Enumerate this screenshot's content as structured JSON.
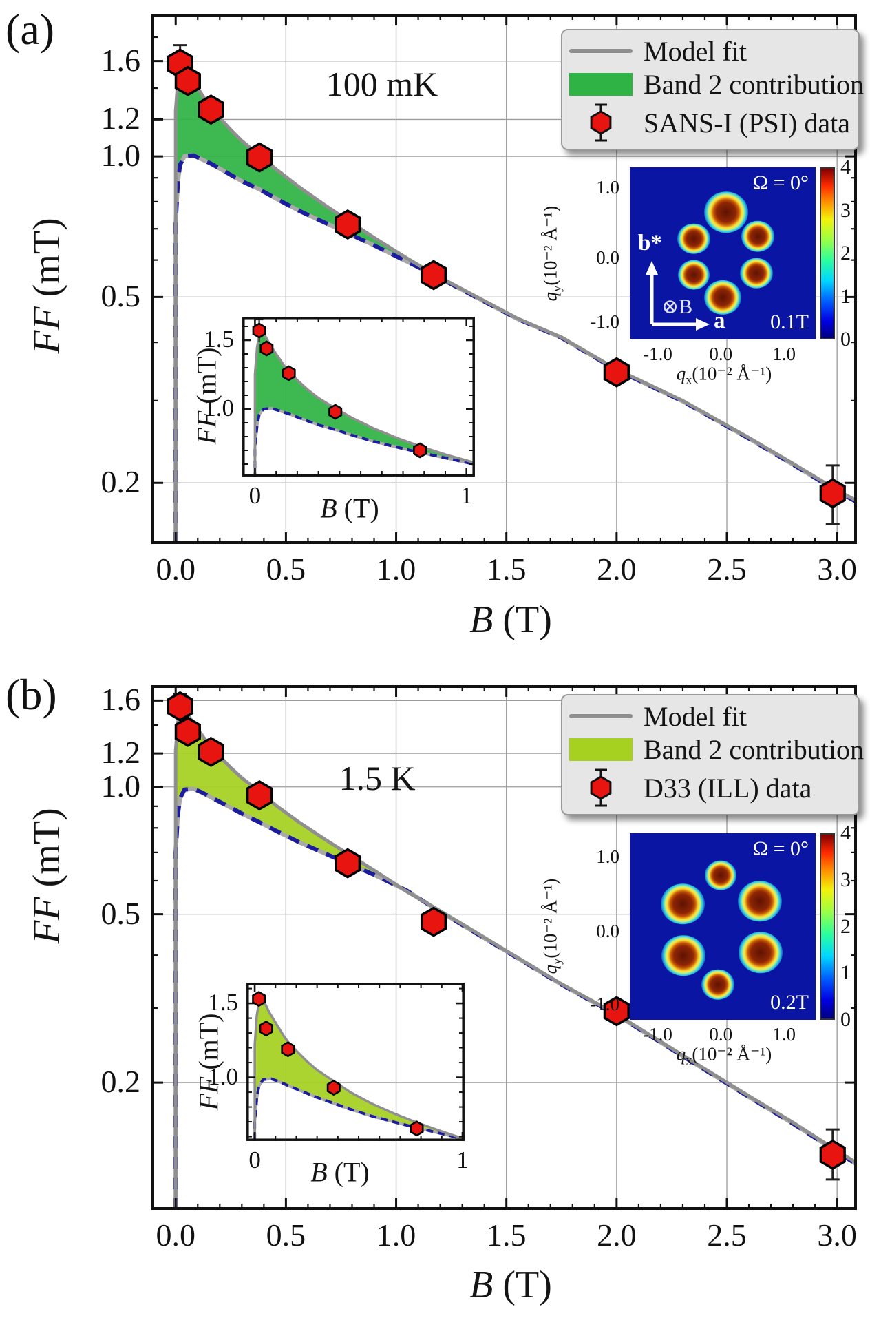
{
  "chart_data": [
    {
      "type": "line+scatter",
      "panel_label": "(a)",
      "title": "100 mK",
      "legend": {
        "model": "Model fit",
        "band2": "Band 2 contribution",
        "data": "SANS-I (PSI) data"
      },
      "colors": {
        "band2": "#2fb344",
        "band1": "#1c1c9e",
        "model": "#8f8f8f",
        "marker": "#e81410"
      },
      "axes": {
        "x": {
          "min": -0.11,
          "max": 3.09,
          "majors": [
            0,
            0.5,
            1,
            1.5,
            2,
            2.5,
            3
          ],
          "labels": [
            "0.0",
            "0.5",
            "1.0",
            "1.5",
            "2.0",
            "2.5",
            "3.0"
          ],
          "grid": [
            0.5,
            1,
            1.5,
            2,
            2.5,
            3
          ],
          "label_sym": "B",
          "label_unit": "(T)"
        },
        "y": {
          "scale": "log",
          "min": 0.148,
          "max": 2.02,
          "labeled": [
            1.6,
            1.2,
            1.0,
            0.5,
            0.2
          ],
          "labels": [
            "1.6",
            "1.2",
            "1.0",
            "0.5",
            "0.2"
          ],
          "label_sym": "FF",
          "label_unit": "(mT)"
        }
      },
      "series": {
        "model_fit_upper": [
          [
            0.0,
            0.148
          ],
          [
            0.0,
            1.25
          ],
          [
            0.01,
            1.45
          ],
          [
            0.025,
            1.57
          ],
          [
            0.04,
            1.555
          ],
          [
            0.07,
            1.47
          ],
          [
            0.1,
            1.4
          ],
          [
            0.14,
            1.31
          ],
          [
            0.16,
            1.27
          ],
          [
            0.2,
            1.21
          ],
          [
            0.25,
            1.14
          ],
          [
            0.3,
            1.08
          ],
          [
            0.38,
            1.005
          ],
          [
            0.46,
            0.935
          ],
          [
            0.56,
            0.86
          ],
          [
            0.68,
            0.785
          ],
          [
            0.78,
            0.73
          ],
          [
            0.9,
            0.67
          ],
          [
            1.05,
            0.605
          ],
          [
            1.17,
            0.56
          ],
          [
            1.35,
            0.505
          ],
          [
            1.55,
            0.45
          ],
          [
            1.75,
            0.41
          ],
          [
            2.0,
            0.35
          ],
          [
            2.3,
            0.3
          ],
          [
            2.6,
            0.25
          ],
          [
            2.8,
            0.22
          ],
          [
            3.0,
            0.193
          ],
          [
            3.09,
            0.183
          ]
        ],
        "band1_lower": [
          [
            0.0,
            0.148
          ],
          [
            0.0,
            0.72
          ],
          [
            0.01,
            0.88
          ],
          [
            0.02,
            0.96
          ],
          [
            0.04,
            1.0
          ],
          [
            0.08,
            1.005
          ],
          [
            0.12,
            0.985
          ],
          [
            0.16,
            0.965
          ],
          [
            0.22,
            0.93
          ],
          [
            0.3,
            0.885
          ],
          [
            0.38,
            0.85
          ],
          [
            0.46,
            0.81
          ],
          [
            0.56,
            0.765
          ],
          [
            0.68,
            0.72
          ],
          [
            0.78,
            0.685
          ],
          [
            0.9,
            0.645
          ],
          [
            1.05,
            0.595
          ],
          [
            1.17,
            0.558
          ],
          [
            1.35,
            0.503
          ],
          [
            1.55,
            0.449
          ],
          [
            1.75,
            0.409
          ],
          [
            2.0,
            0.349
          ],
          [
            2.3,
            0.299
          ],
          [
            2.6,
            0.249
          ],
          [
            2.8,
            0.219
          ],
          [
            3.0,
            0.192
          ],
          [
            3.09,
            0.182
          ]
        ],
        "data_points": [
          [
            0.02,
            1.58
          ],
          [
            0.055,
            1.45
          ],
          [
            0.16,
            1.26
          ],
          [
            0.38,
            0.995
          ],
          [
            0.78,
            0.715
          ],
          [
            1.17,
            0.557
          ],
          [
            2.0,
            0.345
          ],
          [
            2.98,
            0.19
          ]
        ],
        "errors": [
          {
            "i": 0,
            "lo": 1.5,
            "hi": 1.73
          },
          {
            "i": 7,
            "lo": 0.163,
            "hi": 0.218
          }
        ]
      },
      "inset": {
        "x": {
          "min": -0.06,
          "max": 1.04,
          "majors": [
            0,
            1
          ],
          "labels": [
            "0",
            "1"
          ],
          "label_sym": "B",
          "label_unit": "(T)"
        },
        "y": {
          "min": 0.51,
          "max": 1.67,
          "labeled": [
            1.5,
            1.0
          ],
          "labels": [
            "1.5",
            "1.0"
          ],
          "label_sym": "FF",
          "label_unit": "(mT)"
        },
        "points": [
          [
            0.02,
            1.57
          ],
          [
            0.055,
            1.44
          ],
          [
            0.16,
            1.26
          ],
          [
            0.38,
            0.98
          ],
          [
            0.78,
            0.7
          ]
        ],
        "errors": [
          {
            "i": 0,
            "lo": 1.49,
            "hi": 1.65
          }
        ]
      },
      "sans": {
        "bg": "#0a16a3",
        "omega": "Ω = 0°",
        "field": "0.1T",
        "bstar": "b*",
        "a_axis": "a",
        "b_dir": "⊗B",
        "q_y": {
          "sym": "q",
          "sub": "y",
          "rest": "(10⁻² Å⁻¹)"
        },
        "q_x": {
          "sym": "q",
          "sub": "x",
          "rest": "(10⁻² Å⁻¹)"
        },
        "yticks": [
          {
            "t": "1.0",
            "f": 0.11
          },
          {
            "t": "0.0",
            "f": 0.52
          },
          {
            "t": "-1.0",
            "f": 0.89
          }
        ],
        "xticks": [
          {
            "t": "-1.0",
            "f": 0.15
          },
          {
            "t": "0.0",
            "f": 0.49
          },
          {
            "t": "1.0",
            "f": 0.83
          }
        ],
        "colorbar": [
          "4",
          "3",
          "2",
          "1",
          "0"
        ],
        "spots": [
          {
            "x": 0.52,
            "y": 0.26,
            "s": 64
          },
          {
            "x": 0.345,
            "y": 0.415,
            "s": 48
          },
          {
            "x": 0.69,
            "y": 0.4,
            "s": 48
          },
          {
            "x": 0.345,
            "y": 0.625,
            "s": 46
          },
          {
            "x": 0.68,
            "y": 0.615,
            "s": 48
          },
          {
            "x": 0.5,
            "y": 0.755,
            "s": 54
          }
        ]
      }
    },
    {
      "type": "line+scatter",
      "panel_label": "(b)",
      "title": "1.5 K",
      "legend": {
        "model": "Model fit",
        "band2": "Band 2 contribution",
        "data": "D33 (ILL) data"
      },
      "colors": {
        "band2": "#a6d121",
        "band1": "#1c1c9e",
        "model": "#8f8f8f",
        "marker": "#e81410"
      },
      "axes": {
        "x": {
          "min": -0.11,
          "max": 3.09,
          "majors": [
            0,
            0.5,
            1,
            1.5,
            2,
            2.5,
            3
          ],
          "labels": [
            "0.0",
            "0.5",
            "1.0",
            "1.5",
            "2.0",
            "2.5",
            "3.0"
          ],
          "grid": [
            0.5,
            1,
            1.5,
            2,
            2.5,
            3
          ],
          "label_sym": "B",
          "label_unit": "(T)"
        },
        "y": {
          "scale": "log",
          "min": 0.1,
          "max": 1.74,
          "labeled": [
            1.6,
            1.2,
            1.0,
            0.5,
            0.2
          ],
          "labels": [
            "1.6",
            "1.2",
            "1.0",
            "0.5",
            "0.2"
          ],
          "label_sym": "FF",
          "label_unit": "(mT)"
        }
      },
      "series": {
        "model_fit_upper": [
          [
            0.0,
            0.1
          ],
          [
            0.0,
            1.22
          ],
          [
            0.01,
            1.42
          ],
          [
            0.025,
            1.54
          ],
          [
            0.04,
            1.525
          ],
          [
            0.07,
            1.44
          ],
          [
            0.1,
            1.37
          ],
          [
            0.14,
            1.28
          ],
          [
            0.16,
            1.24
          ],
          [
            0.2,
            1.18
          ],
          [
            0.25,
            1.11
          ],
          [
            0.3,
            1.05
          ],
          [
            0.38,
            0.975
          ],
          [
            0.46,
            0.9
          ],
          [
            0.56,
            0.825
          ],
          [
            0.68,
            0.75
          ],
          [
            0.78,
            0.695
          ],
          [
            0.9,
            0.635
          ],
          [
            1.05,
            0.565
          ],
          [
            1.17,
            0.52
          ],
          [
            1.35,
            0.457
          ],
          [
            1.55,
            0.395
          ],
          [
            1.75,
            0.342
          ],
          [
            2.0,
            0.29
          ],
          [
            2.3,
            0.232
          ],
          [
            2.6,
            0.186
          ],
          [
            2.8,
            0.161
          ],
          [
            3.0,
            0.138
          ],
          [
            3.09,
            0.129
          ]
        ],
        "band1_lower": [
          [
            0.0,
            0.1
          ],
          [
            0.0,
            0.7
          ],
          [
            0.01,
            0.86
          ],
          [
            0.02,
            0.94
          ],
          [
            0.04,
            0.985
          ],
          [
            0.08,
            0.99
          ],
          [
            0.12,
            0.97
          ],
          [
            0.16,
            0.945
          ],
          [
            0.22,
            0.91
          ],
          [
            0.3,
            0.865
          ],
          [
            0.38,
            0.825
          ],
          [
            0.46,
            0.785
          ],
          [
            0.56,
            0.74
          ],
          [
            0.68,
            0.695
          ],
          [
            0.78,
            0.66
          ],
          [
            0.9,
            0.62
          ],
          [
            1.05,
            0.568
          ],
          [
            1.17,
            0.518
          ],
          [
            1.35,
            0.455
          ],
          [
            1.55,
            0.394
          ],
          [
            1.75,
            0.341
          ],
          [
            2.0,
            0.289
          ],
          [
            2.3,
            0.231
          ],
          [
            2.6,
            0.185
          ],
          [
            2.8,
            0.16
          ],
          [
            3.0,
            0.137
          ],
          [
            3.09,
            0.128
          ]
        ],
        "data_points": [
          [
            0.02,
            1.55
          ],
          [
            0.055,
            1.35
          ],
          [
            0.16,
            1.21
          ],
          [
            0.38,
            0.955
          ],
          [
            0.78,
            0.66
          ],
          [
            1.17,
            0.48
          ],
          [
            2.0,
            0.295
          ],
          [
            2.98,
            0.135
          ]
        ],
        "errors": [
          {
            "i": 0,
            "lo": 1.47,
            "hi": 1.66
          },
          {
            "i": 7,
            "lo": 0.118,
            "hi": 0.155
          }
        ]
      },
      "inset": {
        "x": {
          "min": -0.04,
          "max": 1.01,
          "majors": [
            0,
            1
          ],
          "labels": [
            "0",
            "1"
          ],
          "label_sym": "B",
          "label_unit": "(T)"
        },
        "y": {
          "min": 0.57,
          "max": 1.64,
          "labeled": [
            1.5,
            1.0
          ],
          "labels": [
            "1.5",
            "1.0"
          ],
          "label_sym": "FF",
          "label_unit": "(mT)"
        },
        "points": [
          [
            0.02,
            1.53
          ],
          [
            0.055,
            1.33
          ],
          [
            0.16,
            1.19
          ],
          [
            0.38,
            0.93
          ],
          [
            0.78,
            0.655
          ]
        ],
        "errors": []
      },
      "sans": {
        "bg": "#0a16a3",
        "omega": "Ω = 0°",
        "field": "0.2T",
        "q_y": {
          "sym": "q",
          "sub": "y",
          "rest": "(10⁻² Å⁻¹)"
        },
        "q_x": {
          "sym": "q",
          "sub": "x",
          "rest": "(10⁻² Å⁻¹)"
        },
        "yticks": [
          {
            "t": "1.0",
            "f": 0.12
          },
          {
            "t": "0.0",
            "f": 0.52
          },
          {
            "t": "-1.0",
            "f": 0.91
          }
        ],
        "xticks": [
          {
            "t": "-1.0",
            "f": 0.15
          },
          {
            "t": "0.0",
            "f": 0.49
          },
          {
            "t": "1.0",
            "f": 0.83
          }
        ],
        "colorbar": [
          "4",
          "3",
          "2",
          "1",
          "0"
        ],
        "spots": [
          {
            "x": 0.49,
            "y": 0.225,
            "s": 46
          },
          {
            "x": 0.285,
            "y": 0.38,
            "s": 64
          },
          {
            "x": 0.7,
            "y": 0.365,
            "s": 64
          },
          {
            "x": 0.29,
            "y": 0.655,
            "s": 64
          },
          {
            "x": 0.705,
            "y": 0.64,
            "s": 64
          },
          {
            "x": 0.475,
            "y": 0.81,
            "s": 48
          }
        ]
      }
    }
  ]
}
